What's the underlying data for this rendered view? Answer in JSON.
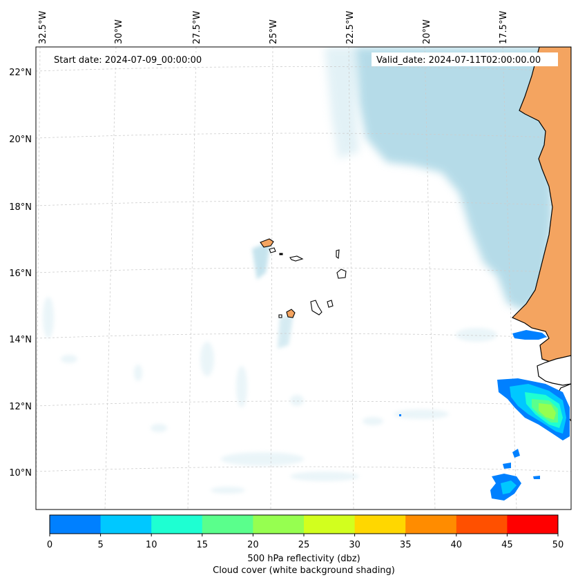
{
  "annotations": {
    "start_date": "Start date: 2024-07-09_00:00:00",
    "valid_date": "Valid_date: 2024-07-11T02:00:00.00"
  },
  "longitude_labels": [
    "32.5°W",
    "30°W",
    "27.5°W",
    "25°W",
    "22.5°W",
    "20°W",
    "17.5°W"
  ],
  "latitude_labels": [
    "22°N",
    "20°N",
    "18°N",
    "16°N",
    "14°N",
    "12°N",
    "10°N"
  ],
  "colorbar": {
    "label_line1": "500 hPa reflectivity (dbz)",
    "label_line2": "Cloud cover (white background shading)",
    "ticks": [
      "0",
      "5",
      "10",
      "15",
      "20",
      "25",
      "30",
      "35",
      "40",
      "45",
      "50"
    ],
    "colors": [
      "#0080ff",
      "#00c8ff",
      "#1effd2",
      "#5aff8c",
      "#96ff50",
      "#d2ff1e",
      "#ffd700",
      "#ff8c00",
      "#ff5000",
      "#ff0000"
    ]
  },
  "colors": {
    "land": "#f4a460",
    "cloud": "#add8e6",
    "coastline": "#000000",
    "gridline": "#cccccc"
  }
}
